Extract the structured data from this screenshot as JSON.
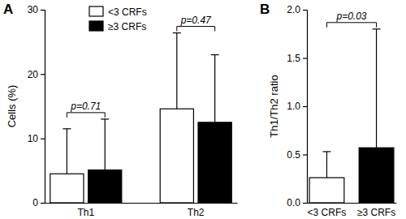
{
  "chart_data": [
    {
      "type": "bar",
      "title": "A",
      "categories": [
        "Th1",
        "Th2"
      ],
      "series": [
        {
          "name": "<3 CRFs",
          "color": "#ffffff",
          "values": [
            4.5,
            14.6
          ],
          "errors": [
            7.0,
            11.8
          ]
        },
        {
          "name": "≥3 CRFs",
          "color": "#000000",
          "values": [
            5.1,
            12.5
          ],
          "errors": [
            7.9,
            10.5
          ]
        }
      ],
      "y_label": "Cells (%)",
      "ylim": [
        0,
        30
      ],
      "yticks": [
        0,
        10,
        20,
        30
      ],
      "legend": "top-left",
      "annotations": [
        {
          "text": "p=0.71",
          "category": "Th1"
        },
        {
          "text": "p=0.47",
          "category": "Th2"
        }
      ]
    },
    {
      "type": "bar",
      "title": "B",
      "categories": [
        "<3 CRFs",
        "≥3 CRFs"
      ],
      "values": [
        0.26,
        0.57
      ],
      "errors": [
        0.27,
        1.23
      ],
      "colors": [
        "#ffffff",
        "#000000"
      ],
      "y_label": "Th1/Th2 ratio",
      "ylim": [
        0,
        2
      ],
      "yticks": [
        {
          "value": 0,
          "label": "0.0"
        },
        0.5,
        {
          "value": 1,
          "label": "1.0"
        },
        1.5,
        {
          "value": 2,
          "label": "2.0"
        }
      ],
      "annotations": [
        {
          "text": "p=0.03"
        }
      ]
    }
  ]
}
